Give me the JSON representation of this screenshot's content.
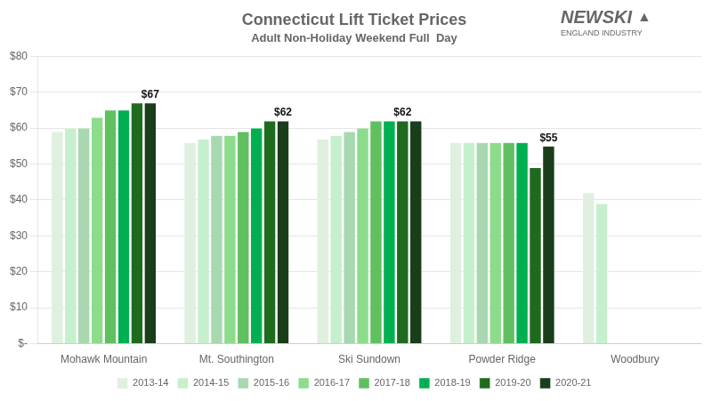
{
  "chart_data": {
    "type": "bar",
    "title": "Connecticut Lift Ticket Prices",
    "subtitle": "Adult Non-Holiday Weekend Full  Day",
    "categories": [
      "Mohawk Mountain",
      "Mt. Southington",
      "Ski Sundown",
      "Powder Ridge",
      "Woodbury"
    ],
    "series": [
      {
        "name": "2013-14",
        "color": "#dff0de",
        "values": [
          59,
          56,
          57,
          56,
          42
        ]
      },
      {
        "name": "2014-15",
        "color": "#c6efce",
        "values": [
          60,
          57,
          58,
          56,
          39
        ]
      },
      {
        "name": "2015-16",
        "color": "#a8d8b0",
        "values": [
          60,
          58,
          59,
          56,
          null
        ]
      },
      {
        "name": "2016-17",
        "color": "#8cdc8c",
        "values": [
          63,
          58,
          60,
          56,
          null
        ]
      },
      {
        "name": "2017-18",
        "color": "#60c060",
        "values": [
          65,
          59,
          62,
          56,
          null
        ]
      },
      {
        "name": "2018-19",
        "color": "#00b050",
        "values": [
          65,
          60,
          62,
          56,
          null
        ]
      },
      {
        "name": "2019-20",
        "color": "#1e6b1e",
        "values": [
          67,
          62,
          62,
          49,
          null
        ]
      },
      {
        "name": "2020-21",
        "color": "#1a3d1a",
        "values": [
          67,
          62,
          62,
          55,
          null
        ]
      }
    ],
    "annotations": [
      {
        "category": "Mohawk Mountain",
        "series": "2020-21",
        "label": "$67"
      },
      {
        "category": "Mt. Southington",
        "series": "2020-21",
        "label": "$62"
      },
      {
        "category": "Ski Sundown",
        "series": "2019-20",
        "label": "$62"
      },
      {
        "category": "Powder Ridge",
        "series": "2020-21",
        "label": "$55"
      },
      {
        "label": "NEWSKI"
      },
      {
        "label": "▲"
      },
      {
        "label": "ENGLAND INDUSTRY"
      }
    ],
    "ylim": [
      0,
      80
    ],
    "yticks": [
      {
        "value": 0,
        "label": "$-"
      },
      {
        "value": 10,
        "label": "$10"
      },
      {
        "value": 20,
        "label": "$20"
      },
      {
        "value": 30,
        "label": "$30"
      },
      {
        "value": 40,
        "label": "$40"
      },
      {
        "value": 50,
        "label": "$50"
      },
      {
        "value": 60,
        "label": "$60"
      },
      {
        "value": 70,
        "label": "$70"
      },
      {
        "value": 80,
        "label": "$80"
      }
    ],
    "grid": true,
    "legend": "bottom"
  }
}
